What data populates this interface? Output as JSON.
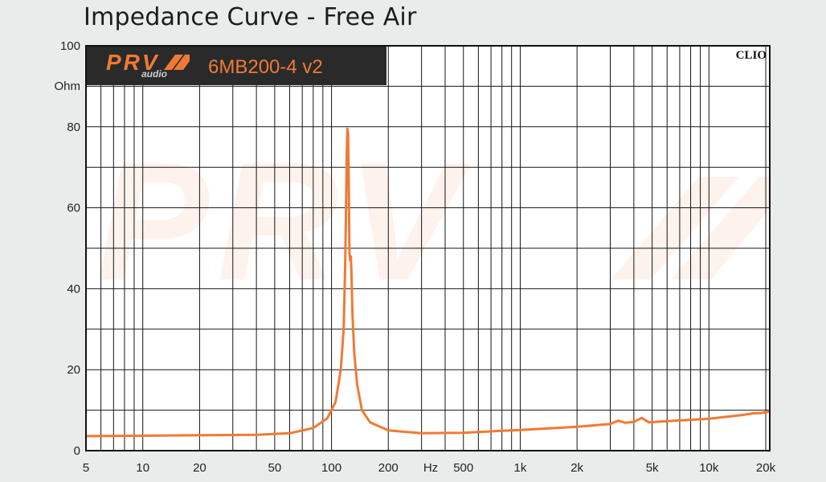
{
  "chart_data": {
    "type": "line",
    "title": "Impedance Curve - Free Air",
    "ylabel": "Ohm",
    "xlabel": "Hz",
    "x_scale": "log",
    "xlim": [
      5,
      21000
    ],
    "ylim": [
      0,
      100
    ],
    "grid": true,
    "x_ticks": [
      {
        "value": 5,
        "label": "5"
      },
      {
        "value": 10,
        "label": "10"
      },
      {
        "value": 20,
        "label": "20"
      },
      {
        "value": 50,
        "label": "50"
      },
      {
        "value": 100,
        "label": "100"
      },
      {
        "value": 200,
        "label": "200"
      },
      {
        "value": 500,
        "label": "500"
      },
      {
        "value": 1000,
        "label": "1k"
      },
      {
        "value": 2000,
        "label": "2k"
      },
      {
        "value": 5000,
        "label": "5k"
      },
      {
        "value": 10000,
        "label": "10k"
      },
      {
        "value": 20000,
        "label": "20k"
      }
    ],
    "y_ticks": [
      {
        "value": 0,
        "label": "0"
      },
      {
        "value": 20,
        "label": "20"
      },
      {
        "value": 40,
        "label": "40"
      },
      {
        "value": 60,
        "label": "60"
      },
      {
        "value": 80,
        "label": "80"
      },
      {
        "value": 100,
        "label": "100"
      }
    ],
    "series": [
      {
        "color": "#f07a35",
        "points": [
          [
            5,
            3.6
          ],
          [
            10,
            3.7
          ],
          [
            20,
            3.8
          ],
          [
            40,
            3.9
          ],
          [
            60,
            4.3
          ],
          [
            80,
            5.6
          ],
          [
            95,
            8.0
          ],
          [
            105,
            12.0
          ],
          [
            112,
            20.0
          ],
          [
            116,
            30.0
          ],
          [
            118,
            45.0
          ],
          [
            119.5,
            60.0
          ],
          [
            120.5,
            74.0
          ],
          [
            121.5,
            79.5
          ],
          [
            122.5,
            78.0
          ],
          [
            123.5,
            65.0
          ],
          [
            124.5,
            49.0
          ],
          [
            125.5,
            47.0
          ],
          [
            126.5,
            48.0
          ],
          [
            127.5,
            44.0
          ],
          [
            129,
            34.0
          ],
          [
            132,
            24.0
          ],
          [
            137,
            16.0
          ],
          [
            145,
            10.0
          ],
          [
            160,
            7.0
          ],
          [
            200,
            5.0
          ],
          [
            300,
            4.3
          ],
          [
            500,
            4.4
          ],
          [
            800,
            4.9
          ],
          [
            1000,
            5.1
          ],
          [
            2000,
            5.9
          ],
          [
            3000,
            6.6
          ],
          [
            3300,
            7.4
          ],
          [
            3600,
            6.9
          ],
          [
            4000,
            7.1
          ],
          [
            4400,
            8.1
          ],
          [
            4800,
            7.0
          ],
          [
            6000,
            7.3
          ],
          [
            10000,
            7.9
          ],
          [
            15000,
            8.8
          ],
          [
            17000,
            9.2
          ],
          [
            19000,
            9.3
          ],
          [
            21000,
            9.7
          ]
        ]
      }
    ],
    "annotations": {
      "brand_logo": "PRV",
      "brand_sub": "audio",
      "model": "6MB200-4 v2",
      "software_tag": "CLIO"
    }
  }
}
